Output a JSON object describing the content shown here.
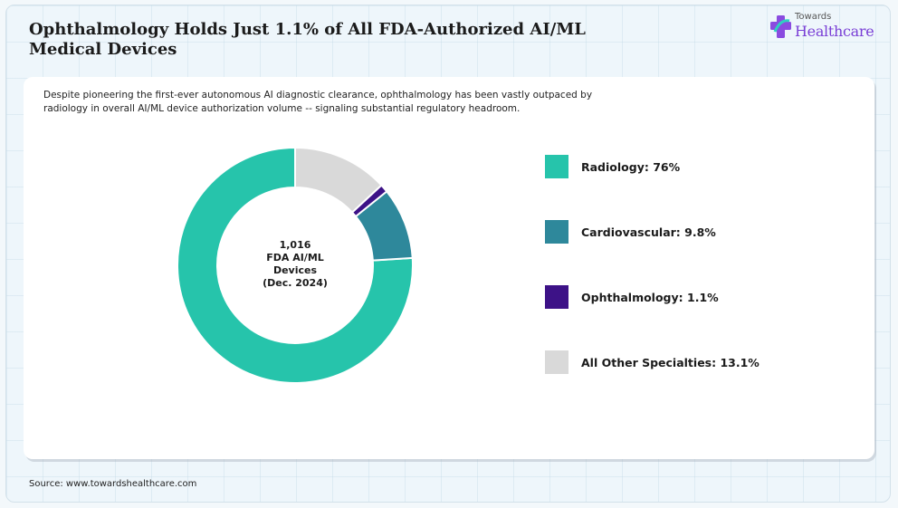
{
  "header": {
    "title_line1": "Ophthalmology Holds Just 1.1% of All FDA-Authorized AI/ML",
    "title_line2": "Medical Devices"
  },
  "logo": {
    "top": "Towards",
    "main": "Healthcare",
    "icon": "medical-cross-icon"
  },
  "subtitle_line1": "Despite pioneering the first-ever autonomous AI diagnostic clearance, ophthalmology has been vastly outpaced by",
  "subtitle_line2": "radiology in overall AI/ML device authorization volume -- signaling substantial regulatory headroom.",
  "center": {
    "line1": "1,016",
    "line2": "FDA AI/ML",
    "line3": "Devices",
    "line4": "(Dec. 2024)"
  },
  "legend": [
    {
      "label": "Radiology: 76%"
    },
    {
      "label": "Cardiovascular: 9.8%"
    },
    {
      "label": "Ophthalmology: 1.1%"
    },
    {
      "label": "All Other Specialties: 13.1%"
    }
  ],
  "source": "Source: www.towardshealthcare.com",
  "chart_data": {
    "type": "pie",
    "donut": true,
    "categories": [
      "Radiology",
      "Cardiovascular",
      "Ophthalmology",
      "All Other Specialties"
    ],
    "values": [
      76,
      9.8,
      1.1,
      13.1
    ],
    "colors": [
      "#26c4ab",
      "#2e889b",
      "#3d1287",
      "#d9d9d9"
    ],
    "legend_position": "right",
    "start": "top",
    "direction": "counterclockwise"
  }
}
